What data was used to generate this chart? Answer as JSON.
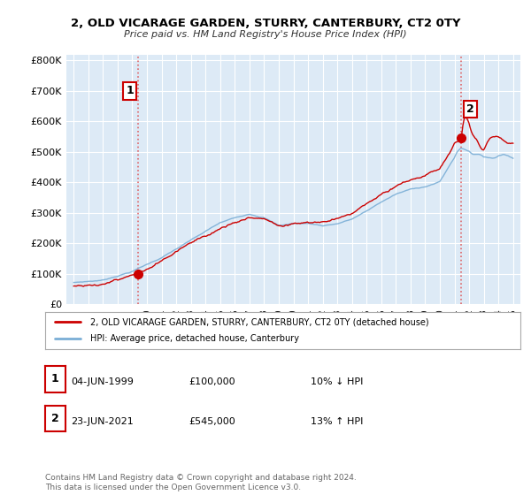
{
  "title": "2, OLD VICARAGE GARDEN, STURRY, CANTERBURY, CT2 0TY",
  "subtitle": "Price paid vs. HM Land Registry's House Price Index (HPI)",
  "legend_line1": "2, OLD VICARAGE GARDEN, STURRY, CANTERBURY, CT2 0TY (detached house)",
  "legend_line2": "HPI: Average price, detached house, Canterbury",
  "annotation1_label": "1",
  "annotation1_date": "04-JUN-1999",
  "annotation1_price": "£100,000",
  "annotation1_pct": "10% ↓ HPI",
  "annotation2_label": "2",
  "annotation2_date": "23-JUN-2021",
  "annotation2_price": "£545,000",
  "annotation2_pct": "13% ↑ HPI",
  "footnote": "Contains HM Land Registry data © Crown copyright and database right 2024.\nThis data is licensed under the Open Government Licence v3.0.",
  "price_color": "#cc0000",
  "hpi_color": "#7aaed6",
  "annotation_vline_color": "#dd4444",
  "annotation_box_color": "#cc0000",
  "plot_bg_color": "#ddeaf6",
  "background_color": "#ffffff",
  "ylim": [
    0,
    820000
  ],
  "yticks": [
    0,
    100000,
    200000,
    300000,
    400000,
    500000,
    600000,
    700000,
    800000
  ],
  "ytick_labels": [
    "£0",
    "£100K",
    "£200K",
    "£300K",
    "£400K",
    "£500K",
    "£600K",
    "£700K",
    "£800K"
  ],
  "t1": 1999.42,
  "t2": 2021.47,
  "p1": 100000,
  "p2": 545000
}
